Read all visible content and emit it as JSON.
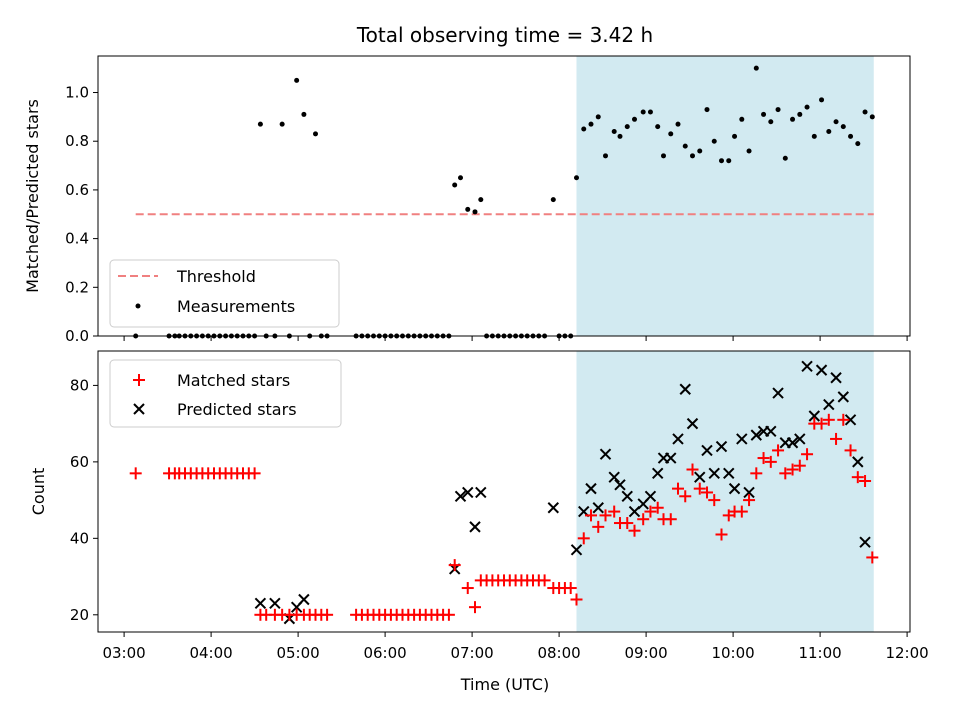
{
  "title": "Total observing time = 3.42 h",
  "chart_data": [
    {
      "type": "scatter",
      "ylabel": "Matched/Predicted stars",
      "xlabel": "",
      "xlim": [
        "02:42",
        "12:02"
      ],
      "ylim": [
        0,
        1.15
      ],
      "yticks": [
        "0.0",
        "0.2",
        "0.4",
        "0.6",
        "0.8",
        "1.0"
      ],
      "ytick_values": [
        0,
        0.2,
        0.4,
        0.6,
        0.8,
        1.0
      ],
      "grid": false,
      "legend_position": "lower-left",
      "highlight_span": [
        "08:12",
        "11:37"
      ],
      "highlight_color": "#add8e6",
      "threshold": {
        "name": "Threshold",
        "value": 0.5,
        "x_range": [
          "03:08",
          "11:37"
        ],
        "color": "#f08080",
        "style": "dashed"
      },
      "measurements": {
        "name": "Measurements",
        "color": "#000000",
        "points": [
          [
            "03:08",
            0
          ],
          [
            "03:31",
            0
          ],
          [
            "03:35",
            0
          ],
          [
            "03:38",
            0
          ],
          [
            "03:42",
            0
          ],
          [
            "03:46",
            0
          ],
          [
            "03:50",
            0
          ],
          [
            "03:54",
            0
          ],
          [
            "03:58",
            0
          ],
          [
            "04:02",
            0
          ],
          [
            "04:06",
            0
          ],
          [
            "04:10",
            0
          ],
          [
            "04:14",
            0
          ],
          [
            "04:18",
            0
          ],
          [
            "04:22",
            0
          ],
          [
            "04:26",
            0
          ],
          [
            "04:30",
            0
          ],
          [
            "04:34",
            0.87
          ],
          [
            "04:38",
            0
          ],
          [
            "04:44",
            0
          ],
          [
            "04:49",
            0.87
          ],
          [
            "04:54",
            0
          ],
          [
            "04:59",
            1.05
          ],
          [
            "05:04",
            0.91
          ],
          [
            "05:08",
            0
          ],
          [
            "05:12",
            0.83
          ],
          [
            "05:16",
            0
          ],
          [
            "05:20",
            0
          ],
          [
            "05:40",
            0
          ],
          [
            "05:44",
            0
          ],
          [
            "05:48",
            0
          ],
          [
            "05:52",
            0
          ],
          [
            "05:56",
            0
          ],
          [
            "06:00",
            0
          ],
          [
            "06:04",
            0
          ],
          [
            "06:08",
            0
          ],
          [
            "06:12",
            0
          ],
          [
            "06:16",
            0
          ],
          [
            "06:20",
            0
          ],
          [
            "06:24",
            0
          ],
          [
            "06:28",
            0
          ],
          [
            "06:32",
            0
          ],
          [
            "06:36",
            0
          ],
          [
            "06:40",
            0
          ],
          [
            "06:44",
            0
          ],
          [
            "06:48",
            0.62
          ],
          [
            "06:52",
            0.65
          ],
          [
            "06:57",
            0.52
          ],
          [
            "07:02",
            0.51
          ],
          [
            "07:06",
            0.56
          ],
          [
            "07:10",
            0
          ],
          [
            "07:14",
            0
          ],
          [
            "07:18",
            0
          ],
          [
            "07:22",
            0
          ],
          [
            "07:26",
            0
          ],
          [
            "07:30",
            0
          ],
          [
            "07:34",
            0
          ],
          [
            "07:38",
            0
          ],
          [
            "07:42",
            0
          ],
          [
            "07:46",
            0
          ],
          [
            "07:50",
            0
          ],
          [
            "07:56",
            0.56
          ],
          [
            "08:00",
            0
          ],
          [
            "08:04",
            0
          ],
          [
            "08:08",
            0
          ],
          [
            "08:12",
            0.65
          ],
          [
            "08:17",
            0.85
          ],
          [
            "08:22",
            0.87
          ],
          [
            "08:27",
            0.9
          ],
          [
            "08:32",
            0.74
          ],
          [
            "08:38",
            0.84
          ],
          [
            "08:42",
            0.82
          ],
          [
            "08:47",
            0.86
          ],
          [
            "08:52",
            0.89
          ],
          [
            "08:58",
            0.92
          ],
          [
            "09:03",
            0.92
          ],
          [
            "09:08",
            0.86
          ],
          [
            "09:12",
            0.74
          ],
          [
            "09:17",
            0.83
          ],
          [
            "09:22",
            0.87
          ],
          [
            "09:27",
            0.78
          ],
          [
            "09:32",
            0.74
          ],
          [
            "09:37",
            0.76
          ],
          [
            "09:42",
            0.93
          ],
          [
            "09:47",
            0.8
          ],
          [
            "09:52",
            0.72
          ],
          [
            "09:57",
            0.72
          ],
          [
            "10:01",
            0.82
          ],
          [
            "10:06",
            0.89
          ],
          [
            "10:11",
            0.76
          ],
          [
            "10:16",
            1.1
          ],
          [
            "10:21",
            0.91
          ],
          [
            "10:26",
            0.88
          ],
          [
            "10:31",
            0.93
          ],
          [
            "10:36",
            0.73
          ],
          [
            "10:41",
            0.89
          ],
          [
            "10:46",
            0.91
          ],
          [
            "10:51",
            0.94
          ],
          [
            "10:56",
            0.82
          ],
          [
            "11:01",
            0.97
          ],
          [
            "11:06",
            0.84
          ],
          [
            "11:11",
            0.88
          ],
          [
            "11:16",
            0.86
          ],
          [
            "11:21",
            0.82
          ],
          [
            "11:26",
            0.79
          ],
          [
            "11:31",
            0.92
          ],
          [
            "11:36",
            0.9
          ]
        ]
      }
    },
    {
      "type": "scatter",
      "ylabel": "Count",
      "xlabel": "Time (UTC)",
      "xlim": [
        "02:42",
        "12:02"
      ],
      "ylim": [
        15.5,
        89
      ],
      "yticks": [
        "20",
        "40",
        "60",
        "80"
      ],
      "ytick_values": [
        20,
        40,
        60,
        80
      ],
      "xticks": [
        "03:00",
        "04:00",
        "05:00",
        "06:00",
        "07:00",
        "08:00",
        "09:00",
        "10:00",
        "11:00",
        "12:00"
      ],
      "grid": false,
      "legend_position": "upper-left",
      "highlight_span": [
        "08:12",
        "11:37"
      ],
      "highlight_color": "#add8e6",
      "series": [
        {
          "name": "Matched stars",
          "marker": "+",
          "color": "#ff0000",
          "points": [
            [
              "03:08",
              57
            ],
            [
              "03:31",
              57
            ],
            [
              "03:35",
              57
            ],
            [
              "03:38",
              57
            ],
            [
              "03:42",
              57
            ],
            [
              "03:46",
              57
            ],
            [
              "03:50",
              57
            ],
            [
              "03:54",
              57
            ],
            [
              "03:58",
              57
            ],
            [
              "04:02",
              57
            ],
            [
              "04:06",
              57
            ],
            [
              "04:10",
              57
            ],
            [
              "04:14",
              57
            ],
            [
              "04:18",
              57
            ],
            [
              "04:22",
              57
            ],
            [
              "04:26",
              57
            ],
            [
              "04:30",
              57
            ],
            [
              "04:34",
              20
            ],
            [
              "04:38",
              20
            ],
            [
              "04:44",
              20
            ],
            [
              "04:49",
              20
            ],
            [
              "04:54",
              20
            ],
            [
              "04:59",
              20
            ],
            [
              "05:04",
              20
            ],
            [
              "05:08",
              20
            ],
            [
              "05:12",
              20
            ],
            [
              "05:16",
              20
            ],
            [
              "05:20",
              20
            ],
            [
              "05:40",
              20
            ],
            [
              "05:44",
              20
            ],
            [
              "05:48",
              20
            ],
            [
              "05:52",
              20
            ],
            [
              "05:56",
              20
            ],
            [
              "06:00",
              20
            ],
            [
              "06:04",
              20
            ],
            [
              "06:08",
              20
            ],
            [
              "06:12",
              20
            ],
            [
              "06:16",
              20
            ],
            [
              "06:20",
              20
            ],
            [
              "06:24",
              20
            ],
            [
              "06:28",
              20
            ],
            [
              "06:32",
              20
            ],
            [
              "06:36",
              20
            ],
            [
              "06:40",
              20
            ],
            [
              "06:44",
              20
            ],
            [
              "06:48",
              33
            ],
            [
              "06:57",
              27
            ],
            [
              "07:02",
              22
            ],
            [
              "07:06",
              29
            ],
            [
              "07:10",
              29
            ],
            [
              "07:14",
              29
            ],
            [
              "07:18",
              29
            ],
            [
              "07:22",
              29
            ],
            [
              "07:26",
              29
            ],
            [
              "07:30",
              29
            ],
            [
              "07:34",
              29
            ],
            [
              "07:38",
              29
            ],
            [
              "07:42",
              29
            ],
            [
              "07:46",
              29
            ],
            [
              "07:50",
              29
            ],
            [
              "07:56",
              27
            ],
            [
              "08:00",
              27
            ],
            [
              "08:04",
              27
            ],
            [
              "08:08",
              27
            ],
            [
              "08:12",
              24
            ],
            [
              "08:17",
              40
            ],
            [
              "08:22",
              46
            ],
            [
              "08:27",
              43
            ],
            [
              "08:32",
              46
            ],
            [
              "08:38",
              47
            ],
            [
              "08:42",
              44
            ],
            [
              "08:47",
              44
            ],
            [
              "08:52",
              42
            ],
            [
              "08:58",
              45
            ],
            [
              "09:03",
              47
            ],
            [
              "09:08",
              48
            ],
            [
              "09:12",
              45
            ],
            [
              "09:17",
              45
            ],
            [
              "09:22",
              53
            ],
            [
              "09:27",
              51
            ],
            [
              "09:32",
              58
            ],
            [
              "09:37",
              53
            ],
            [
              "09:42",
              52
            ],
            [
              "09:47",
              50
            ],
            [
              "09:52",
              41
            ],
            [
              "09:57",
              46
            ],
            [
              "10:01",
              47
            ],
            [
              "10:06",
              47
            ],
            [
              "10:11",
              50
            ],
            [
              "10:16",
              57
            ],
            [
              "10:21",
              61
            ],
            [
              "10:26",
              60
            ],
            [
              "10:31",
              63
            ],
            [
              "10:36",
              57
            ],
            [
              "10:41",
              58
            ],
            [
              "10:46",
              59
            ],
            [
              "10:51",
              62
            ],
            [
              "10:56",
              70
            ],
            [
              "11:01",
              70
            ],
            [
              "11:06",
              71
            ],
            [
              "11:11",
              66
            ],
            [
              "11:16",
              71
            ],
            [
              "11:21",
              63
            ],
            [
              "11:26",
              56
            ],
            [
              "11:31",
              55
            ],
            [
              "11:36",
              35
            ]
          ]
        },
        {
          "name": "Predicted stars",
          "marker": "x",
          "color": "#000000",
          "points": [
            [
              "04:34",
              23
            ],
            [
              "04:44",
              23
            ],
            [
              "04:54",
              19
            ],
            [
              "04:59",
              22
            ],
            [
              "05:04",
              24
            ],
            [
              "06:48",
              32
            ],
            [
              "06:52",
              51
            ],
            [
              "06:57",
              52
            ],
            [
              "07:02",
              43
            ],
            [
              "07:06",
              52
            ],
            [
              "07:56",
              48
            ],
            [
              "08:12",
              37
            ],
            [
              "08:17",
              47
            ],
            [
              "08:22",
              53
            ],
            [
              "08:27",
              48
            ],
            [
              "08:32",
              62
            ],
            [
              "08:38",
              56
            ],
            [
              "08:42",
              54
            ],
            [
              "08:47",
              51
            ],
            [
              "08:52",
              47
            ],
            [
              "08:58",
              49
            ],
            [
              "09:03",
              51
            ],
            [
              "09:08",
              57
            ],
            [
              "09:12",
              61
            ],
            [
              "09:17",
              61
            ],
            [
              "09:22",
              66
            ],
            [
              "09:27",
              79
            ],
            [
              "09:32",
              70
            ],
            [
              "09:37",
              56
            ],
            [
              "09:42",
              63
            ],
            [
              "09:47",
              57
            ],
            [
              "09:52",
              64
            ],
            [
              "09:57",
              57
            ],
            [
              "10:01",
              53
            ],
            [
              "10:06",
              66
            ],
            [
              "10:11",
              52
            ],
            [
              "10:16",
              67
            ],
            [
              "10:21",
              68
            ],
            [
              "10:26",
              68
            ],
            [
              "10:31",
              78
            ],
            [
              "10:36",
              65
            ],
            [
              "10:41",
              65
            ],
            [
              "10:46",
              66
            ],
            [
              "10:51",
              85
            ],
            [
              "10:56",
              72
            ],
            [
              "11:01",
              84
            ],
            [
              "11:06",
              75
            ],
            [
              "11:11",
              82
            ],
            [
              "11:16",
              77
            ],
            [
              "11:21",
              71
            ],
            [
              "11:26",
              60
            ],
            [
              "11:31",
              39
            ]
          ]
        }
      ]
    }
  ]
}
